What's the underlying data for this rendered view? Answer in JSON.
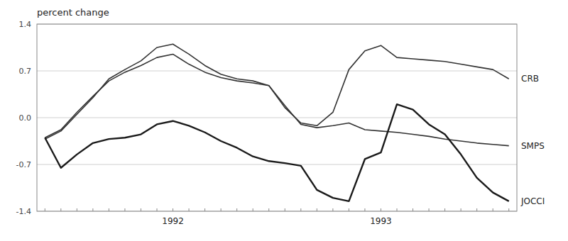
{
  "chart_data": {
    "type": "line",
    "title": "percent change",
    "categories": [
      null,
      null,
      null,
      null,
      null,
      null,
      null,
      null,
      "1992",
      null,
      null,
      null,
      null,
      null,
      null,
      null,
      null,
      null,
      null,
      null,
      null,
      "1993",
      null,
      null,
      null,
      null,
      null,
      null,
      null,
      null
    ],
    "series": [
      {
        "name": "CRB",
        "color": "#333333",
        "values": [
          -0.32,
          -0.2,
          0.05,
          0.3,
          0.58,
          0.72,
          0.85,
          1.05,
          1.1,
          0.95,
          0.78,
          0.65,
          0.58,
          0.55,
          0.48,
          0.15,
          -0.08,
          -0.12,
          0.08,
          0.72,
          1.0,
          1.08,
          0.9,
          0.88,
          0.86,
          0.84,
          0.8,
          0.76,
          0.72,
          0.58
        ]
      },
      {
        "name": "SMPS",
        "color": "#333333",
        "values": [
          -0.3,
          -0.18,
          0.08,
          0.32,
          0.55,
          0.68,
          0.78,
          0.9,
          0.95,
          0.8,
          0.68,
          0.6,
          0.55,
          0.52,
          0.48,
          0.18,
          -0.1,
          -0.15,
          -0.12,
          -0.08,
          -0.18,
          -0.2,
          -0.22,
          -0.25,
          -0.28,
          -0.32,
          -0.35,
          -0.38,
          -0.4,
          -0.42
        ]
      },
      {
        "name": "JOCCI",
        "color": "#1a1a1a",
        "values": [
          -0.3,
          -0.75,
          -0.55,
          -0.38,
          -0.32,
          -0.3,
          -0.25,
          -0.1,
          -0.05,
          -0.12,
          -0.22,
          -0.35,
          -0.45,
          -0.58,
          -0.65,
          -0.68,
          -0.72,
          -1.08,
          -1.2,
          -1.25,
          -0.62,
          -0.52,
          0.2,
          0.12,
          -0.1,
          -0.25,
          -0.55,
          -0.9,
          -1.12,
          -1.25
        ]
      }
    ],
    "ylim": [
      -1.4,
      1.4
    ],
    "yticks": [
      -1.4,
      -0.7,
      {
        "value": 0,
        "label": "0.0"
      },
      0.7,
      1.4
    ],
    "grid": true
  }
}
